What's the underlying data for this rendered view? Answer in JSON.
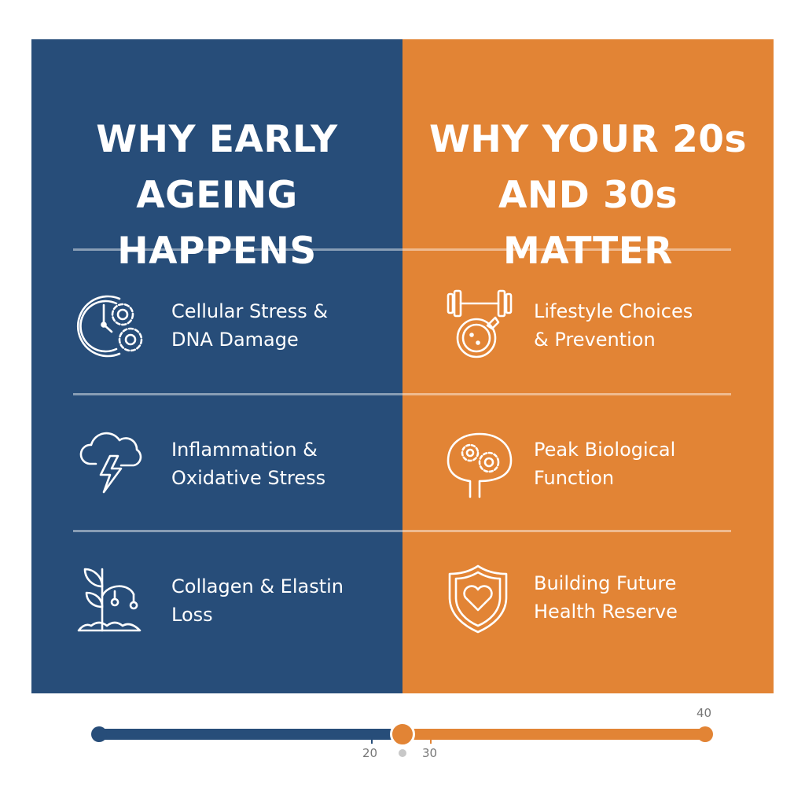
{
  "left": {
    "title_lines": [
      "WHY EARLY",
      "AGEING",
      "HAPPENS"
    ],
    "color": "#274d79",
    "items": [
      {
        "icon": "clock-gears-icon",
        "line1": "Cellular Stress &",
        "line2": "DNA Damage"
      },
      {
        "icon": "storm-cloud-icon",
        "line1": "Inflammation &",
        "line2": "Oxidative Stress"
      },
      {
        "icon": "wilting-plant-icon",
        "line1": "Collagen & Elastin",
        "line2": "Loss"
      }
    ]
  },
  "right": {
    "title_lines": [
      "WHY YOUR 20s",
      "AND 30s",
      "MATTER"
    ],
    "color": "#e28435",
    "items": [
      {
        "icon": "dumbbell-plate-icon",
        "line1": "Lifestyle Choices",
        "line2": "& Prevention"
      },
      {
        "icon": "brain-gears-icon",
        "line1": "Peak Biological",
        "line2": "Function"
      },
      {
        "icon": "shield-heart-icon",
        "line1": "Building Future",
        "line2": "Health Reserve"
      }
    ]
  },
  "timeline": {
    "labels": {
      "t20": "20",
      "t30": "30",
      "t40": "40"
    }
  }
}
